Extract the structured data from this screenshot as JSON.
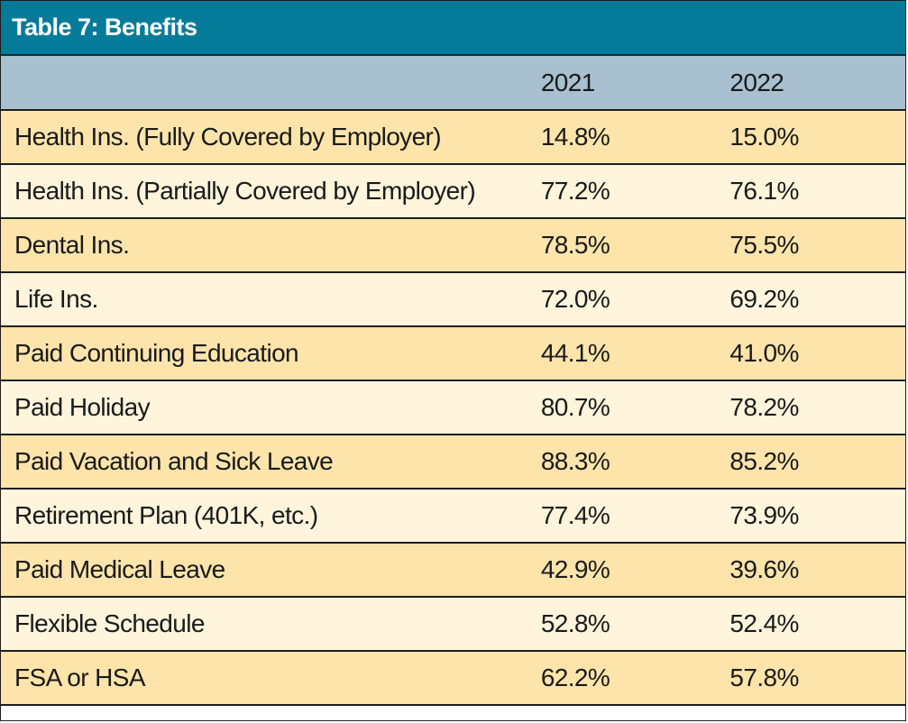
{
  "chart_data": {
    "type": "table",
    "title": "Table 7: Benefits",
    "columns": [
      "",
      "2021",
      "2022"
    ],
    "rows": [
      {
        "label": "Health Ins. (Fully Covered by Employer)",
        "v2021": "14.8%",
        "v2022": "15.0%"
      },
      {
        "label": "Health Ins. (Partially Covered by Employer)",
        "v2021": "77.2%",
        "v2022": "76.1%"
      },
      {
        "label": "Dental Ins.",
        "v2021": "78.5%",
        "v2022": "75.5%"
      },
      {
        "label": "Life Ins.",
        "v2021": "72.0%",
        "v2022": "69.2%"
      },
      {
        "label": "Paid Continuing Education",
        "v2021": "44.1%",
        "v2022": "41.0%"
      },
      {
        "label": "Paid Holiday",
        "v2021": "80.7%",
        "v2022": "78.2%"
      },
      {
        "label": "Paid Vacation and Sick Leave",
        "v2021": "88.3%",
        "v2022": "85.2%"
      },
      {
        "label": "Retirement Plan (401K, etc.)",
        "v2021": "77.4%",
        "v2022": "73.9%"
      },
      {
        "label": "Paid Medical Leave",
        "v2021": "42.9%",
        "v2022": "39.6%"
      },
      {
        "label": "Flexible Schedule",
        "v2021": "52.8%",
        "v2022": "52.4%"
      },
      {
        "label": "FSA or HSA",
        "v2021": "62.2%",
        "v2022": "57.8%"
      }
    ]
  },
  "colors": {
    "title_bar": "#067b99",
    "header_row": "#a8c0cf",
    "row_gold": "#fde4ab",
    "row_cream": "#fef5dc"
  }
}
